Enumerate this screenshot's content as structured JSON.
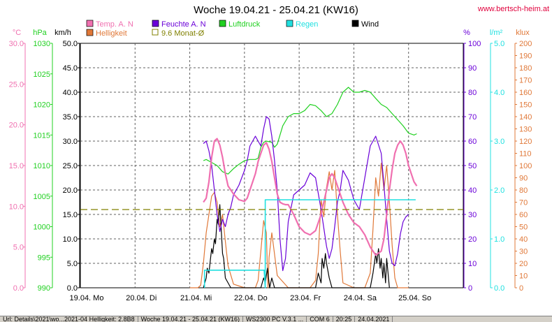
{
  "header": {
    "title": "Woche 19.04.21 - 25.04.21 (KW16)",
    "website": "www.bertsch-heim.at"
  },
  "legend": [
    {
      "label": "Temp. A. N",
      "color": "#f070b0",
      "kind": "box"
    },
    {
      "label": "Feuchte A. N",
      "color": "#6a00d8",
      "kind": "box"
    },
    {
      "label": "Luftdruck",
      "color": "#20d020",
      "kind": "box"
    },
    {
      "label": "Regen",
      "color": "#20e0e0",
      "kind": "box"
    },
    {
      "label": "Wind",
      "color": "#000000",
      "kind": "box"
    },
    {
      "label": "Helligkeit",
      "color": "#e07838",
      "kind": "box"
    },
    {
      "label": "9.6 Monat-Ø",
      "color": "#808000",
      "kind": "outline"
    }
  ],
  "axes": {
    "temp": {
      "unit": "°C",
      "color": "#f070b0",
      "ticks": [
        "0.0",
        "5.0",
        "10.0",
        "15.0",
        "20.0",
        "25.0",
        "30.0"
      ]
    },
    "press": {
      "unit": "hPa",
      "color": "#20d020",
      "ticks": [
        "990",
        "995",
        "1000",
        "1005",
        "1010",
        "1015",
        "1020",
        "1025",
        "1030"
      ]
    },
    "wind": {
      "unit": "km/h",
      "color": "#000000",
      "ticks": [
        "0.0",
        "5.0",
        "10.0",
        "15.0",
        "20.0",
        "25.0",
        "30.0",
        "35.0",
        "40.0",
        "45.0",
        "50.0"
      ]
    },
    "hum": {
      "unit": "%",
      "color": "#6a00d8",
      "ticks": [
        "0",
        "10",
        "20",
        "30",
        "40",
        "50",
        "60",
        "70",
        "80",
        "90",
        "100"
      ]
    },
    "rain": {
      "unit": "l/m²",
      "color": "#20e0e0",
      "ticks": [
        "0.0",
        "1.0",
        "2.0",
        "3.0",
        "4.0",
        "5.0"
      ]
    },
    "lux": {
      "unit": "klux",
      "color": "#e07838",
      "ticks": [
        "0",
        "10",
        "20",
        "30",
        "40",
        "50",
        "60",
        "70",
        "80",
        "90",
        "100",
        "110",
        "120",
        "130",
        "140",
        "150",
        "160",
        "170",
        "180",
        "190",
        "200"
      ]
    }
  },
  "x_labels": [
    "19.04. Mo",
    "20.04. Di",
    "21.04. Mi",
    "22.04. Do",
    "23.04. Fr",
    "24.04. Sa",
    "25.04. So"
  ],
  "chart_data": {
    "type": "line",
    "x_unit": "day index (0 = 19.04. 00:00)",
    "xlim": [
      0,
      7
    ],
    "series": [
      {
        "name": "Temp. A. N",
        "axis": "temp",
        "color": "#f070b0",
        "x": [
          2.25,
          2.3,
          2.35,
          2.4,
          2.45,
          2.5,
          2.55,
          2.6,
          2.65,
          2.7,
          2.8,
          2.9,
          3.0,
          3.05,
          3.1,
          3.2,
          3.25,
          3.3,
          3.35,
          3.4,
          3.45,
          3.5,
          3.55,
          3.6,
          3.65,
          3.7,
          3.75,
          3.8,
          3.9,
          4.0,
          4.1,
          4.2,
          4.3,
          4.4,
          4.5,
          4.55,
          4.6,
          4.65,
          4.7,
          4.8,
          4.9,
          5.0,
          5.1,
          5.2,
          5.3,
          5.4,
          5.5,
          5.55,
          5.6,
          5.65,
          5.7,
          5.75,
          5.8,
          5.85,
          5.9,
          5.95,
          6.0,
          6.05,
          6.1,
          6.15
        ],
        "y": [
          10.5,
          11,
          13,
          16,
          18,
          18.3,
          17.5,
          16,
          14,
          12.5,
          11.5,
          10.8,
          10.6,
          11,
          12,
          14,
          15.5,
          16.5,
          17.5,
          17.8,
          17,
          15.5,
          13.5,
          11.5,
          10.5,
          10.3,
          10.2,
          10.2,
          9,
          7.5,
          6.8,
          6.5,
          7,
          9,
          12,
          13.5,
          14,
          13.5,
          12.5,
          10.5,
          9,
          8,
          7.5,
          6.5,
          5,
          4,
          4.5,
          6,
          9,
          12,
          14.5,
          16.5,
          17.5,
          18,
          17.5,
          16.5,
          15,
          14,
          13,
          12.5
        ]
      },
      {
        "name": "Feuchte A. N",
        "axis": "hum",
        "color": "#6a00d8",
        "x": [
          2.25,
          2.3,
          2.35,
          2.4,
          2.45,
          2.5,
          2.55,
          2.6,
          2.65,
          2.7,
          2.75,
          2.8,
          2.9,
          3.0,
          3.05,
          3.1,
          3.15,
          3.2,
          3.25,
          3.3,
          3.35,
          3.4,
          3.45,
          3.5,
          3.55,
          3.6,
          3.65,
          3.7,
          3.75,
          3.8,
          3.9,
          4.0,
          4.1,
          4.2,
          4.3,
          4.4,
          4.5,
          4.55,
          4.6,
          4.65,
          4.7,
          4.75,
          4.8,
          4.9,
          5.0,
          5.1,
          5.2,
          5.3,
          5.4,
          5.5,
          5.55,
          5.6,
          5.65,
          5.7,
          5.75,
          5.8,
          5.85,
          5.9,
          5.95,
          6.0
        ],
        "y": [
          59,
          60,
          56,
          50,
          40,
          30,
          23,
          28,
          25,
          30,
          33,
          38,
          42,
          48,
          52,
          58,
          60,
          62,
          60,
          58,
          65,
          70,
          69,
          62,
          52,
          40,
          20,
          7,
          12,
          27,
          38,
          40,
          42,
          47,
          45,
          32,
          17,
          12,
          16,
          25,
          35,
          40,
          48,
          44,
          36,
          32,
          45,
          58,
          62,
          55,
          42,
          28,
          15,
          10,
          9,
          14,
          22,
          27,
          29,
          30
        ]
      },
      {
        "name": "Luftdruck",
        "axis": "press",
        "color": "#20d020",
        "x": [
          2.25,
          2.3,
          2.4,
          2.5,
          2.6,
          2.7,
          2.8,
          2.9,
          3.0,
          3.1,
          3.2,
          3.25,
          3.3,
          3.35,
          3.4,
          3.5,
          3.55,
          3.6,
          3.7,
          3.8,
          3.9,
          4.0,
          4.1,
          4.2,
          4.3,
          4.4,
          4.5,
          4.6,
          4.7,
          4.8,
          4.9,
          5.0,
          5.1,
          5.2,
          5.3,
          5.4,
          5.5,
          5.6,
          5.7,
          5.8,
          5.9,
          6.0,
          6.1,
          6.15
        ],
        "y": [
          1010.8,
          1011,
          1010.5,
          1010,
          1009,
          1008.6,
          1009.5,
          1010.2,
          1010.8,
          1011,
          1011,
          1011.2,
          1013,
          1013.8,
          1014,
          1013.8,
          1013,
          1013.5,
          1016.5,
          1018,
          1018.5,
          1018.5,
          1019,
          1020,
          1019.8,
          1019,
          1018,
          1018.5,
          1020,
          1022,
          1022.8,
          1022,
          1022,
          1022.3,
          1022,
          1021,
          1020,
          1019.5,
          1018.5,
          1017.5,
          1016.5,
          1015.3,
          1015,
          1015.2
        ]
      },
      {
        "name": "Regen",
        "axis": "rain",
        "color": "#20e0e0",
        "step": true,
        "x": [
          2.27,
          2.27,
          3.36,
          3.36,
          3.38,
          3.38,
          3.43,
          3.43,
          6.13
        ],
        "y": [
          0,
          0.36,
          0.36,
          0.36,
          0,
          1.8,
          1.8,
          1.8,
          1.8
        ]
      },
      {
        "name": "Helligkeit",
        "axis": "lux",
        "color": "#e07838",
        "x": [
          2.0,
          2.15,
          2.2,
          2.25,
          2.3,
          2.35,
          2.4,
          2.45,
          2.5,
          2.55,
          2.6,
          2.65,
          2.7,
          2.8,
          3.0,
          3.2,
          3.25,
          3.3,
          3.35,
          3.4,
          3.43,
          3.45,
          3.5,
          3.6,
          3.8,
          4.2,
          4.3,
          4.35,
          4.4,
          4.45,
          4.5,
          4.55,
          4.6,
          4.65,
          4.7,
          4.75,
          4.8,
          5.0,
          5.2,
          5.3,
          5.35,
          5.4,
          5.45,
          5.5,
          5.55,
          5.6,
          5.65,
          5.7,
          5.75,
          5.8,
          6.0
        ],
        "y": [
          0,
          0,
          2,
          20,
          45,
          60,
          75,
          78,
          70,
          50,
          60,
          38,
          18,
          3,
          0,
          0,
          6,
          30,
          55,
          45,
          0,
          25,
          45,
          10,
          0,
          0,
          6,
          28,
          72,
          58,
          82,
          95,
          80,
          96,
          60,
          30,
          4,
          0,
          0,
          12,
          48,
          90,
          75,
          102,
          80,
          100,
          70,
          35,
          8,
          0,
          0
        ]
      },
      {
        "name": "Wind",
        "axis": "wind",
        "color": "#000000",
        "x": [
          2.25,
          2.3,
          2.32,
          2.35,
          2.38,
          2.4,
          2.42,
          2.45,
          2.47,
          2.5,
          2.52,
          2.55,
          2.57,
          2.6,
          2.62,
          2.65,
          2.7,
          2.75,
          3.3,
          3.35,
          3.38,
          3.42,
          3.46,
          3.5,
          3.55,
          4.3,
          4.35,
          4.4,
          4.42,
          4.45,
          4.48,
          4.5,
          4.55,
          4.6,
          4.65,
          5.3,
          5.35,
          5.4,
          5.42,
          5.45,
          5.48,
          5.5,
          5.53,
          5.55,
          5.58,
          5.6,
          5.65
        ],
        "y": [
          0,
          2,
          4,
          3,
          6,
          8,
          7,
          10,
          9,
          14,
          13,
          17,
          13,
          7,
          6,
          2,
          1,
          0,
          0,
          2,
          1,
          4,
          0,
          2,
          0,
          0,
          3,
          1,
          6,
          4,
          7,
          5,
          2,
          0,
          0,
          0,
          3,
          7,
          5,
          8,
          4,
          6,
          2,
          5,
          1,
          6,
          0
        ]
      },
      {
        "name": "9.6 Monat-Ø",
        "axis": "temp",
        "color": "#808000",
        "dashed": true,
        "x": [
          0,
          7
        ],
        "y": [
          9.6,
          9.6
        ]
      }
    ]
  },
  "statusbar": [
    "Url: Details\\2021\\wo...2021-04 Helligkeit: 2.8B8",
    "Woche 19.04.21 - 25.04.21 (KW16)",
    "WS2300 PC V.3.1 ...",
    "COM 6",
    "20:25",
    "24.04.2021"
  ]
}
